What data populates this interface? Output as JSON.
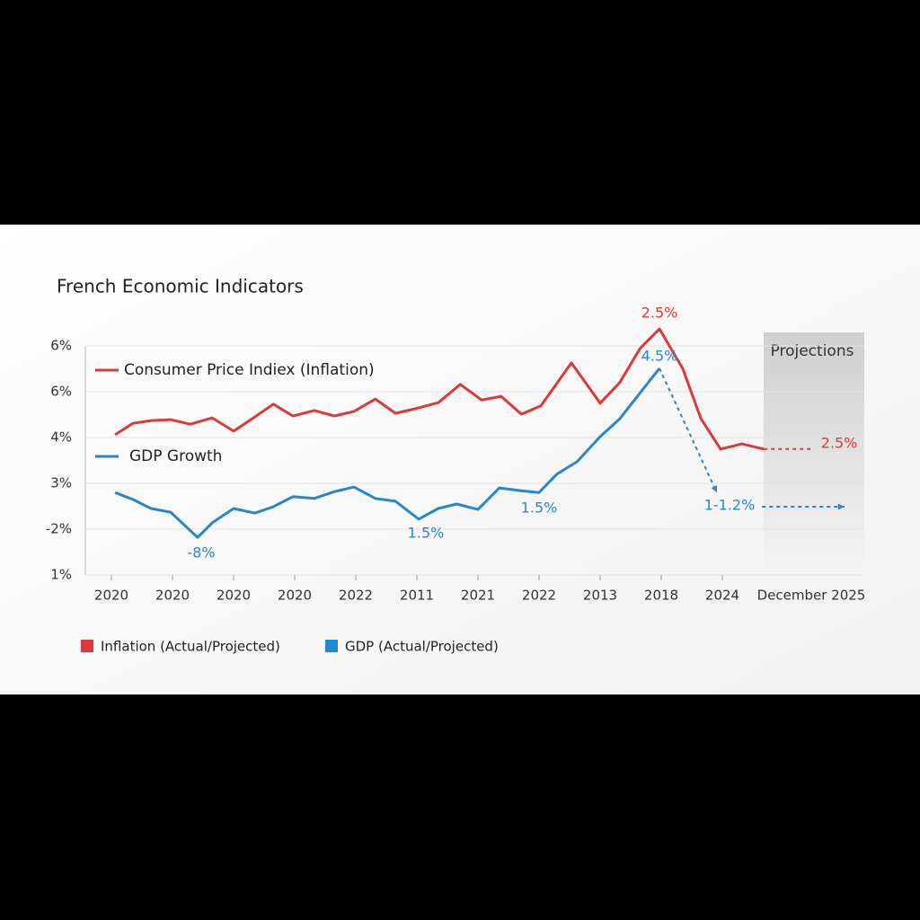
{
  "chart_data": {
    "type": "line",
    "title": "French Economic Indicators",
    "categories": [
      "2020",
      "2020",
      "2020",
      "2020",
      "2022",
      "2011",
      "2021",
      "2022",
      "2013",
      "2018",
      "2024",
      "December 2025"
    ],
    "xlim": [
      0,
      12
    ],
    "ylim": [
      0,
      5
    ],
    "yticks": [
      {
        "value": 0,
        "label": "1%"
      },
      {
        "value": 1,
        "label": "-2%"
      },
      {
        "value": 2,
        "label": "3%"
      },
      {
        "value": 3,
        "label": "4%"
      },
      {
        "value": 4,
        "label": "6%"
      },
      {
        "value": 5,
        "label": "6%"
      }
    ],
    "grid": true,
    "series": [
      {
        "name": "Consumer Price Indiex (Inflation)",
        "color": "#d93a3a",
        "x": [
          0.06,
          0.35,
          0.65,
          0.97,
          1.29,
          1.65,
          2.0,
          2.35,
          2.65,
          2.97,
          3.32,
          3.65,
          3.97,
          4.32,
          4.65,
          4.97,
          5.35,
          5.71,
          6.06,
          6.38,
          6.71,
          7.03,
          7.53,
          8.0,
          8.32,
          8.65,
          8.97,
          9.35,
          9.65,
          9.97,
          10.32,
          10.68
        ],
        "values": [
          3.06,
          3.31,
          3.37,
          3.39,
          3.29,
          3.43,
          3.14,
          3.45,
          3.73,
          3.47,
          3.59,
          3.47,
          3.57,
          3.84,
          3.53,
          3.63,
          3.76,
          4.16,
          3.82,
          3.9,
          3.51,
          3.69,
          4.63,
          3.75,
          4.2,
          4.94,
          5.37,
          4.51,
          3.41,
          2.75,
          2.86,
          2.75
        ]
      },
      {
        "name": "GDP Growth",
        "color": "#2a86c8",
        "x": [
          0.06,
          0.35,
          0.65,
          0.97,
          1.41,
          1.65,
          2.0,
          2.35,
          2.65,
          2.97,
          3.32,
          3.65,
          3.97,
          4.32,
          4.65,
          5.03,
          5.35,
          5.65,
          6.0,
          6.35,
          6.71,
          7.0,
          7.29,
          7.62,
          8.0,
          8.32,
          8.97
        ],
        "values": [
          1.8,
          1.65,
          1.45,
          1.37,
          0.82,
          1.14,
          1.45,
          1.35,
          1.49,
          1.71,
          1.67,
          1.82,
          1.92,
          1.67,
          1.61,
          1.22,
          1.45,
          1.55,
          1.43,
          1.9,
          1.84,
          1.8,
          2.2,
          2.47,
          3.02,
          3.41,
          4.51
        ]
      }
    ],
    "projections": [
      {
        "color": "#d93a3a",
        "x": [
          10.68,
          11.47
        ],
        "values": [
          2.75,
          2.75
        ]
      },
      {
        "color": "#2a86c8",
        "x": [
          8.97,
          9.91
        ],
        "values": [
          4.51,
          1.8
        ],
        "arrow": true
      },
      {
        "color": "#2a86c8",
        "x": [
          10.65,
          12.0
        ],
        "values": [
          1.49,
          1.49
        ],
        "arrow": true
      }
    ],
    "projection_label": "Projections",
    "annotations": [
      {
        "text": "2.5%",
        "color": "#d93a3a"
      },
      {
        "text": "4.5%",
        "color": "#2a86c8"
      },
      {
        "text": "-8%",
        "color": "#2a86c8"
      },
      {
        "text": "1.5%",
        "color": "#2a86c8"
      },
      {
        "text": "1.5%",
        "color": "#2a86c8"
      },
      {
        "text": "1-1.2%",
        "color": "#2a86c8"
      },
      {
        "text": "2.5%",
        "color": "#d93a3a"
      }
    ],
    "bottom_legend": [
      {
        "label": "Inflation (Actual/Projected)",
        "color": "#d93a3a"
      },
      {
        "label": "GDP (Actual/Projected)",
        "color": "#1f8ad0"
      }
    ]
  }
}
